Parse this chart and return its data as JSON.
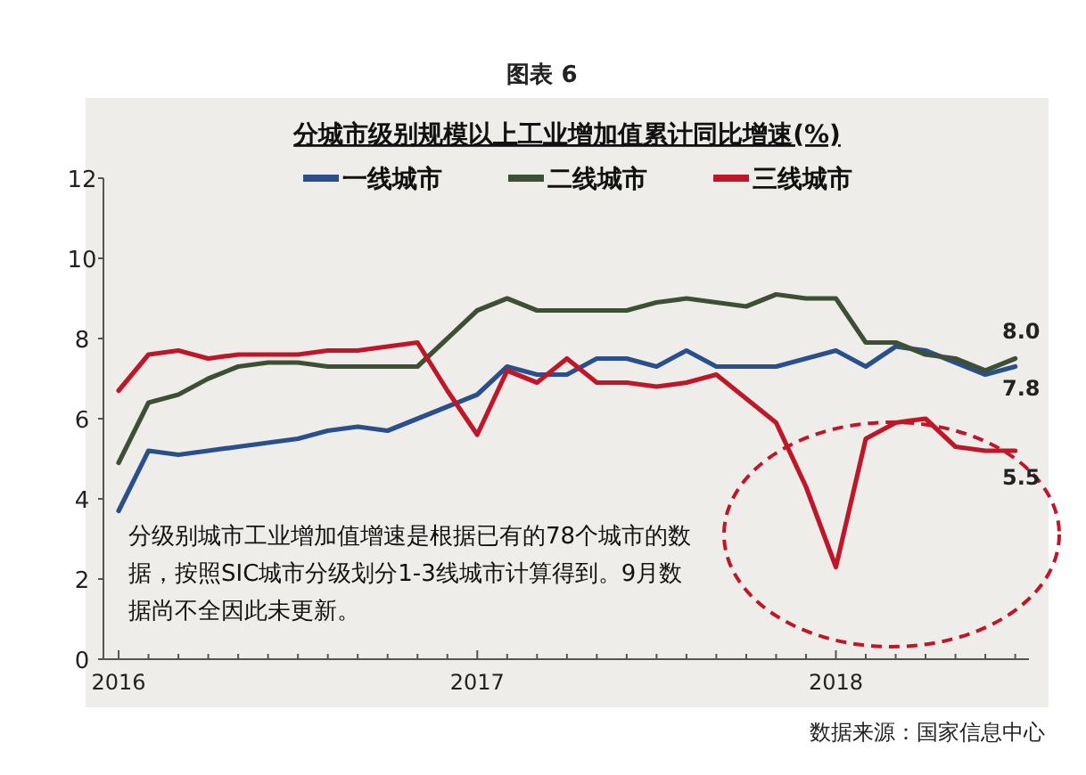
{
  "chart_data": {
    "type": "line",
    "title": "图表 6",
    "subtitle": "分城市级别规模以上工业增加值累计同比增速(%)",
    "x": [
      "2016-01",
      "2016-02",
      "2016-03",
      "2016-04",
      "2016-05",
      "2016-06",
      "2016-07",
      "2016-08",
      "2016-09",
      "2016-10",
      "2016-11",
      "2016-12",
      "2017-01",
      "2017-02",
      "2017-03",
      "2017-04",
      "2017-05",
      "2017-06",
      "2017-07",
      "2017-08",
      "2017-09",
      "2017-10",
      "2017-11",
      "2017-12",
      "2018-01",
      "2018-02",
      "2018-03",
      "2018-04",
      "2018-05",
      "2018-06",
      "2018-07"
    ],
    "series": [
      {
        "name": "一线城市",
        "color": "#2b4f8c",
        "values": [
          3.7,
          5.2,
          5.1,
          5.2,
          5.3,
          5.4,
          5.5,
          5.7,
          5.8,
          5.7,
          6.0,
          6.3,
          6.6,
          7.3,
          7.1,
          7.1,
          7.5,
          7.5,
          7.3,
          7.7,
          7.3,
          7.3,
          7.3,
          7.5,
          7.7,
          7.3,
          7.8,
          7.7,
          7.4,
          7.1,
          7.3
        ]
      },
      {
        "name": "二线城市",
        "color": "#3d4f35",
        "values": [
          4.9,
          6.4,
          6.6,
          7.0,
          7.3,
          7.4,
          7.4,
          7.3,
          7.3,
          7.3,
          7.3,
          8.0,
          8.7,
          9.0,
          8.7,
          8.7,
          8.7,
          8.7,
          8.9,
          9.0,
          8.9,
          8.8,
          9.1,
          9.0,
          9.0,
          7.9,
          7.9,
          7.6,
          7.5,
          7.2,
          7.5
        ]
      },
      {
        "name": "三线城市",
        "color": "#c0162a",
        "values": [
          6.7,
          7.6,
          7.7,
          7.5,
          7.6,
          7.6,
          7.6,
          7.7,
          7.7,
          7.8,
          7.9,
          6.7,
          5.6,
          7.2,
          6.9,
          7.5,
          6.9,
          6.9,
          6.8,
          6.9,
          7.1,
          6.5,
          5.9,
          4.3,
          2.3,
          5.5,
          5.9,
          6.0,
          5.3,
          5.2,
          5.2
        ]
      }
    ],
    "xlim": [
      "2015-12-16",
      "2018-07-15"
    ],
    "xticks": [
      {
        "value": "2016-01",
        "label": "2016"
      },
      {
        "value": "2016-02",
        "label": null
      },
      {
        "value": "2016-03",
        "label": null
      },
      {
        "value": "2016-04",
        "label": null
      },
      {
        "value": "2016-05",
        "label": null
      },
      {
        "value": "2016-06",
        "label": null
      },
      {
        "value": "2016-07",
        "label": null
      },
      {
        "value": "2016-08",
        "label": null
      },
      {
        "value": "2016-09",
        "label": null
      },
      {
        "value": "2016-10",
        "label": null
      },
      {
        "value": "2016-11",
        "label": null
      },
      {
        "value": "2016-12",
        "label": null
      },
      {
        "value": "2017-01",
        "label": "2017"
      },
      {
        "value": "2017-02",
        "label": null
      },
      {
        "value": "2017-03",
        "label": null
      },
      {
        "value": "2017-04",
        "label": null
      },
      {
        "value": "2017-05",
        "label": null
      },
      {
        "value": "2017-06",
        "label": null
      },
      {
        "value": "2017-07",
        "label": null
      },
      {
        "value": "2017-08",
        "label": null
      },
      {
        "value": "2017-09",
        "label": null
      },
      {
        "value": "2017-10",
        "label": null
      },
      {
        "value": "2017-11",
        "label": null
      },
      {
        "value": "2017-12",
        "label": null
      },
      {
        "value": "2018-01",
        "label": "2018"
      },
      {
        "value": "2018-02",
        "label": null
      },
      {
        "value": "2018-03",
        "label": null
      },
      {
        "value": "2018-04",
        "label": null
      },
      {
        "value": "2018-05",
        "label": null
      },
      {
        "value": "2018-06",
        "label": null
      },
      {
        "value": "2018-07",
        "label": null
      }
    ],
    "ylim": [
      0,
      12
    ],
    "yticks": [
      0,
      2,
      4,
      6,
      8,
      10,
      12
    ],
    "legend": "top",
    "grid": false,
    "marker": "none",
    "line_style": "solid",
    "annotations": [
      "8.0",
      "7.8",
      "5.5",
      "分级别城市工业增加值增速是根据已有的78个城市的数据，按照SIC城市分级划分1-3线城市计算得到。9月数据尚不全因此未更新。",
      "数据来源：国家信息中心"
    ]
  }
}
